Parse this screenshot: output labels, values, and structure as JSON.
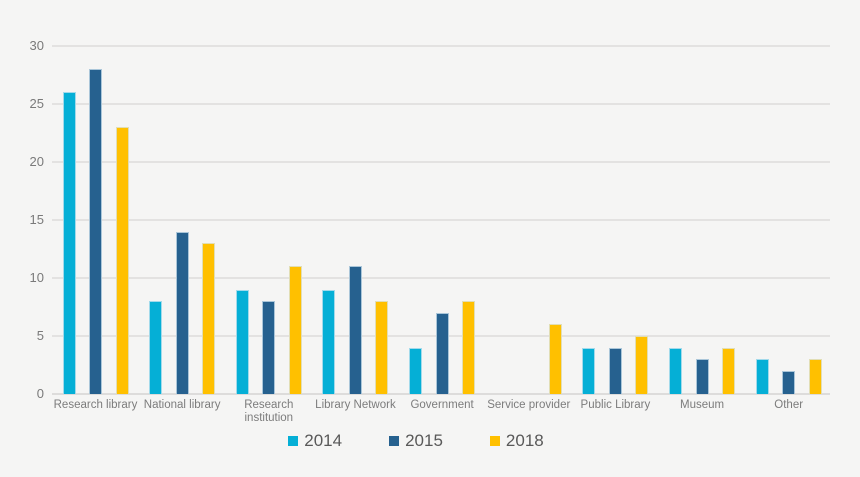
{
  "chart_data": {
    "type": "bar",
    "title": "",
    "xlabel": "",
    "ylabel": "",
    "categories": [
      "Research library",
      "National library",
      "Research institution",
      "Library Network",
      "Government",
      "Service provider",
      "Public Library",
      "Museum",
      "Other"
    ],
    "series": [
      {
        "name": "2014",
        "color": "#05afd6",
        "values": [
          26,
          8,
          9,
          9,
          4,
          0,
          4,
          4,
          3
        ]
      },
      {
        "name": "2015",
        "color": "#26618f",
        "values": [
          28,
          14,
          8,
          11,
          7,
          0,
          4,
          3,
          2
        ]
      },
      {
        "name": "2018",
        "color": "#ffc000",
        "values": [
          23,
          13,
          11,
          8,
          8,
          6,
          5,
          4,
          3
        ]
      }
    ],
    "ylim": [
      0,
      30
    ],
    "yticks": [
      0,
      5,
      10,
      15,
      20,
      25,
      30
    ],
    "grid": true,
    "legend_position": "bottom"
  },
  "colors": {
    "background": "#f5f5f4",
    "gridline": "#e3e2e1",
    "axis_text": "#7a7a7a",
    "legend_text": "#595959",
    "series_2014": "#05afd6",
    "series_2015": "#26618f",
    "series_2018": "#ffc000"
  }
}
